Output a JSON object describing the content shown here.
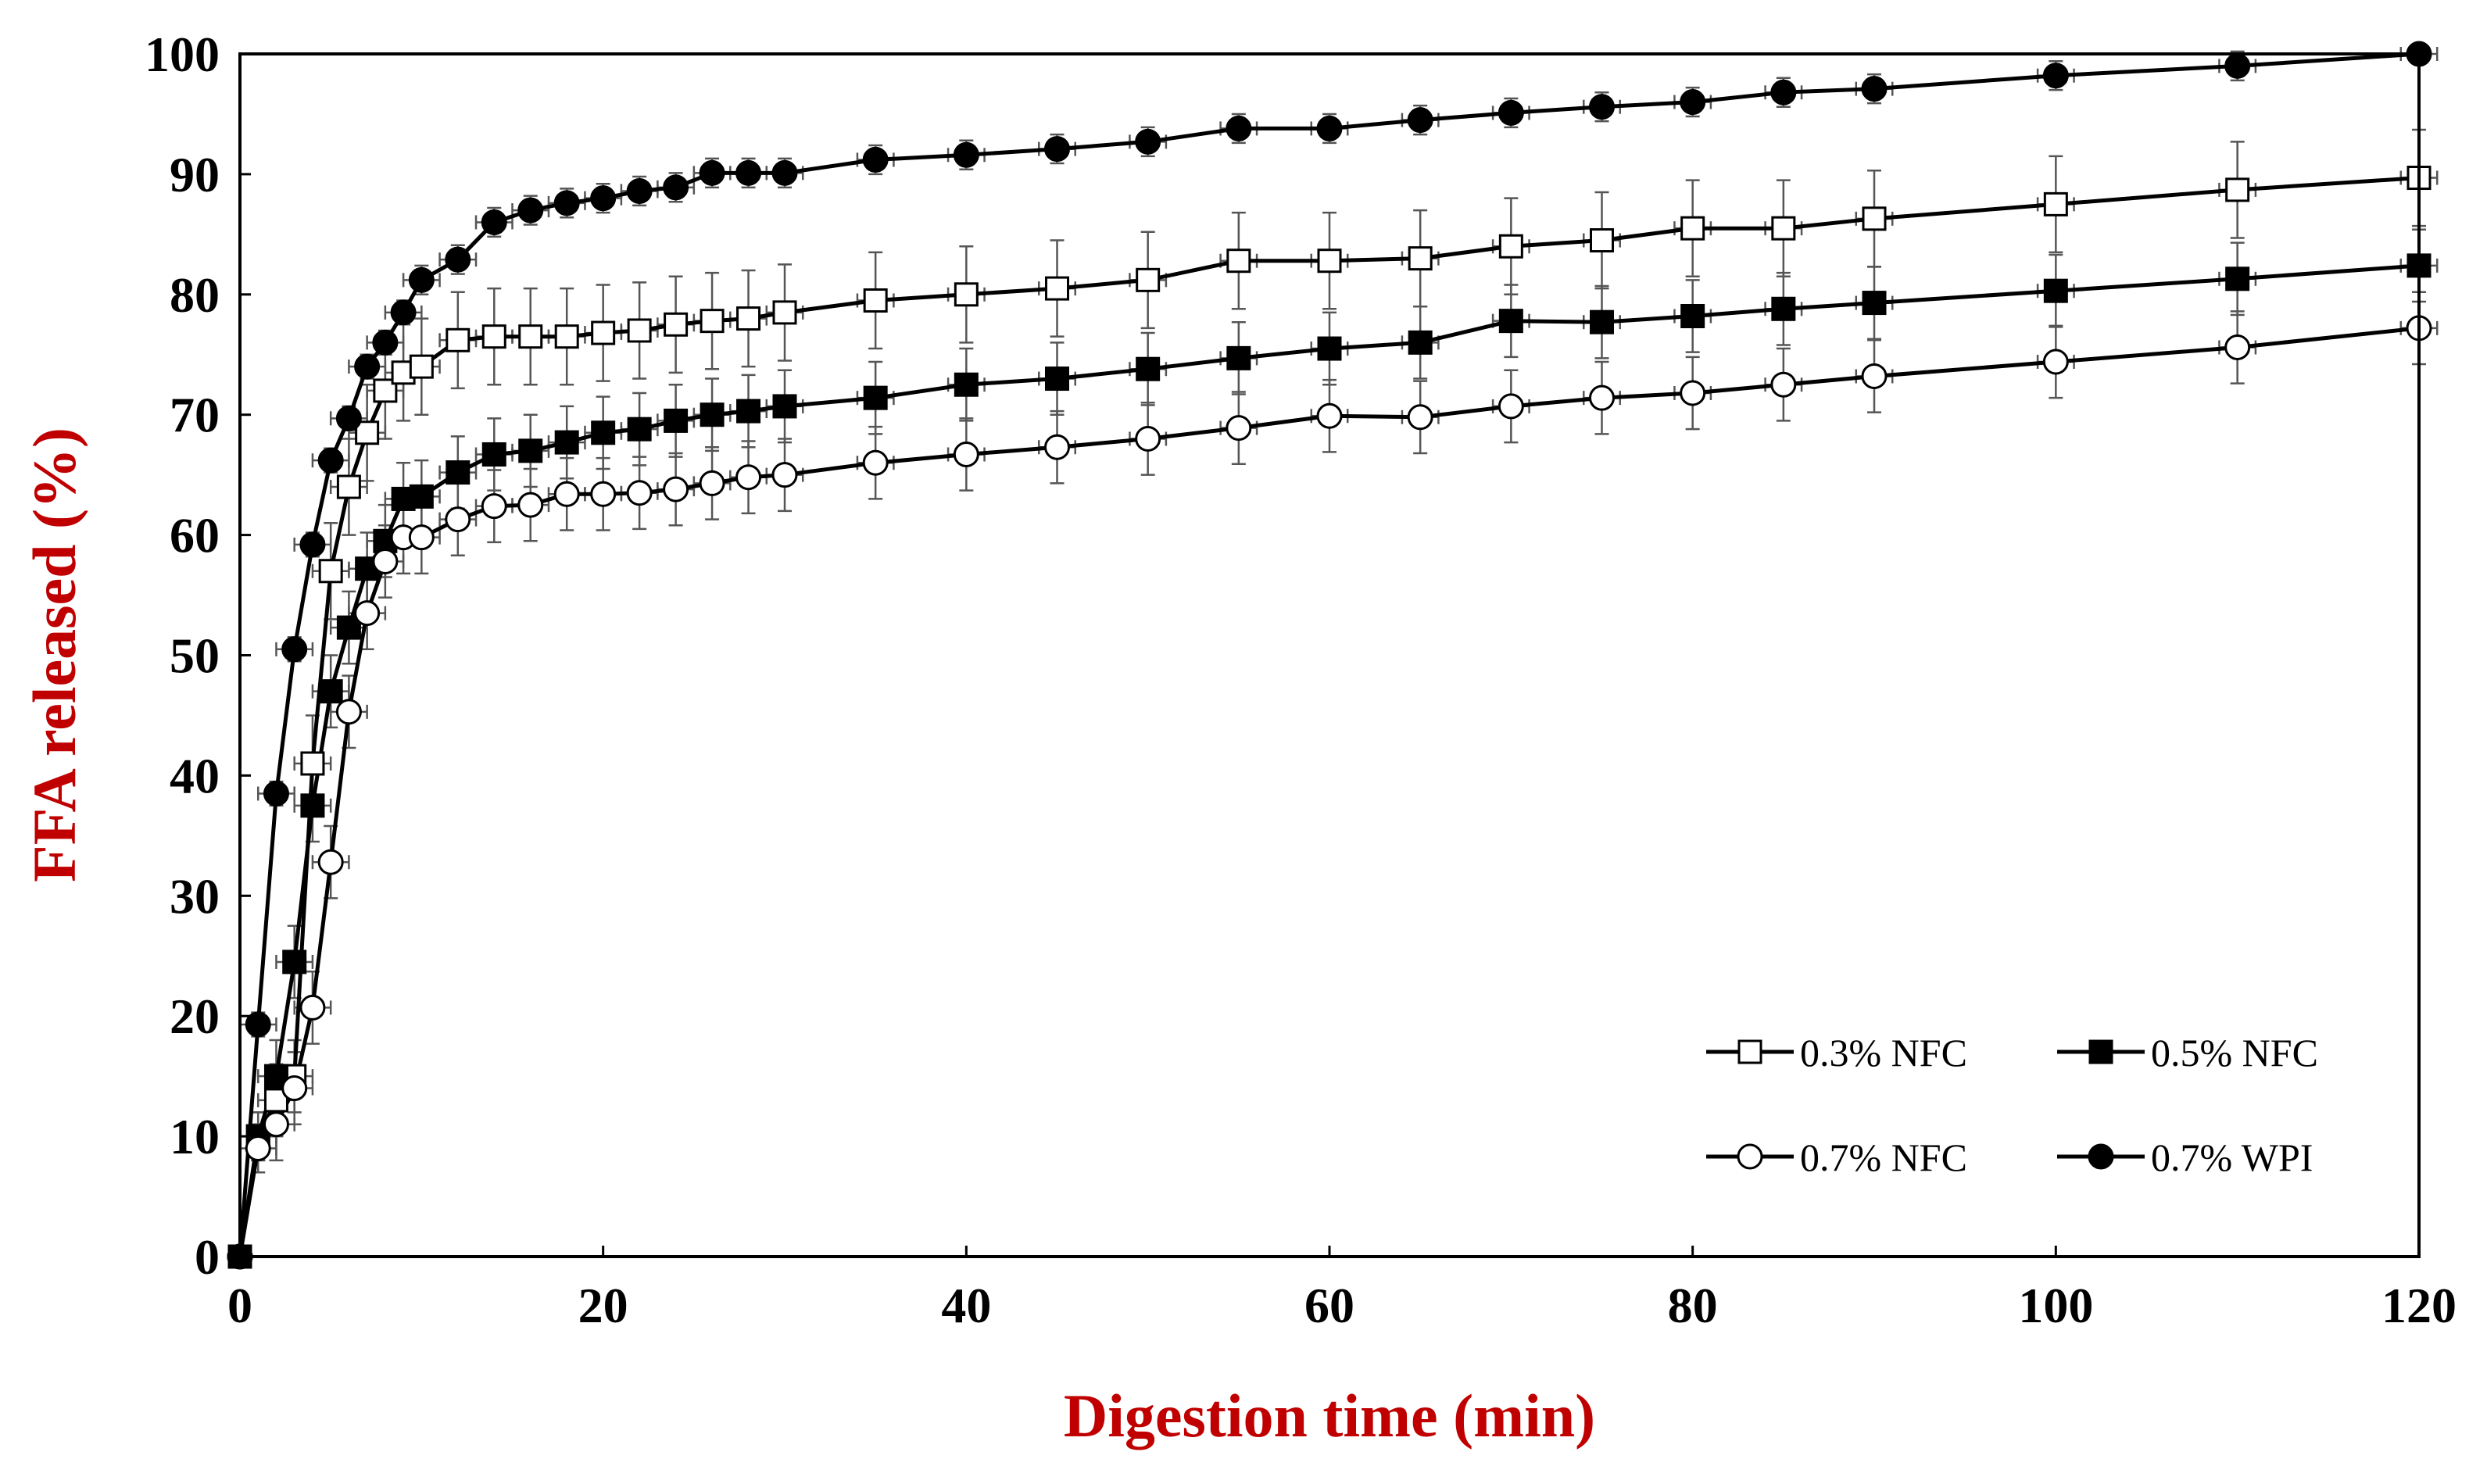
{
  "chart_data": {
    "type": "line",
    "title": "",
    "xlabel": "Digestion time (min)",
    "ylabel": "FFA released (%)",
    "xlim": [
      0,
      120
    ],
    "ylim": [
      0,
      100
    ],
    "xticks": [
      "0",
      "20",
      "40",
      "60",
      "80",
      "100",
      "120"
    ],
    "yticks": [
      "0",
      "10",
      "20",
      "30",
      "40",
      "50",
      "60",
      "70",
      "80",
      "90",
      "100"
    ],
    "legend_position": "bottom-right",
    "axis_title_color": "#c00000",
    "series": [
      {
        "name": "0.3% NFC",
        "marker": "square",
        "filled": false,
        "x": [
          0,
          1,
          2,
          3,
          4,
          5,
          6,
          7,
          8,
          9,
          10,
          12,
          14,
          16,
          18,
          20,
          22,
          24,
          26,
          28,
          30,
          35,
          40,
          45,
          50,
          55,
          60,
          65,
          70,
          75,
          80,
          85,
          90,
          100,
          110,
          120
        ],
        "y": [
          0,
          10,
          13,
          15,
          41,
          57,
          64,
          68.5,
          72,
          73.5,
          74,
          76.2,
          76.5,
          76.5,
          76.5,
          76.8,
          77,
          77.5,
          77.8,
          78,
          78.5,
          79.5,
          80,
          80.5,
          81.2,
          82.8,
          82.8,
          83,
          84,
          84.5,
          85.5,
          85.5,
          86.3,
          87.5,
          88.7,
          89.7
        ],
        "y_err": [
          0,
          2,
          3,
          3,
          4,
          4,
          4,
          4,
          4,
          4,
          4,
          4,
          4,
          4,
          4,
          4,
          4,
          4,
          4,
          4,
          4,
          4,
          4,
          4,
          4,
          4,
          4,
          4,
          4,
          4,
          4,
          4,
          4,
          4,
          4,
          4
        ],
        "x_err": [
          0,
          1,
          1,
          1,
          1,
          1,
          1,
          1,
          1,
          1,
          1,
          1,
          1,
          1,
          1,
          1,
          1,
          1,
          1,
          1,
          1,
          1,
          1,
          1,
          1,
          1,
          1,
          1,
          1,
          1,
          1,
          1,
          1,
          1,
          1,
          1
        ]
      },
      {
        "name": "0.5% NFC",
        "marker": "square",
        "filled": true,
        "x": [
          0,
          1,
          2,
          3,
          4,
          5,
          6,
          7,
          8,
          9,
          10,
          12,
          14,
          16,
          18,
          20,
          22,
          24,
          26,
          28,
          30,
          35,
          40,
          45,
          50,
          55,
          60,
          65,
          70,
          75,
          80,
          85,
          90,
          100,
          110,
          120
        ],
        "y": [
          0,
          10,
          15,
          24.5,
          37.5,
          47,
          52.3,
          57.2,
          59.5,
          63,
          63.2,
          65.2,
          66.7,
          67,
          67.7,
          68.5,
          68.8,
          69.5,
          70,
          70.3,
          70.7,
          71.4,
          72.5,
          73,
          73.8,
          74.7,
          75.5,
          76,
          77.8,
          77.7,
          78.2,
          78.8,
          79.3,
          80.3,
          81.3,
          82.4
        ],
        "y_err": [
          0,
          2,
          3,
          3,
          3,
          3,
          3,
          3,
          3,
          3,
          3,
          3,
          3,
          3,
          3,
          3,
          3,
          3,
          3,
          3,
          3,
          3,
          3,
          3,
          3,
          3,
          3,
          3,
          3,
          3,
          3,
          3,
          3,
          3,
          3,
          3
        ],
        "x_err": [
          0,
          1,
          1,
          1,
          1,
          1,
          1,
          1,
          1,
          1,
          1,
          1,
          1,
          1,
          1,
          1,
          1,
          1,
          1,
          1,
          1,
          1,
          1,
          1,
          1,
          1,
          1,
          1,
          1,
          1,
          1,
          1,
          1,
          1,
          1,
          1
        ]
      },
      {
        "name": "0.7% NFC",
        "marker": "circle",
        "filled": false,
        "x": [
          0,
          1,
          2,
          3,
          4,
          5,
          6,
          7,
          8,
          9,
          10,
          12,
          14,
          16,
          18,
          20,
          22,
          24,
          26,
          28,
          30,
          35,
          40,
          45,
          50,
          55,
          60,
          65,
          70,
          75,
          80,
          85,
          90,
          100,
          110,
          120
        ],
        "y": [
          0,
          9,
          11,
          14,
          20.7,
          32.8,
          45.3,
          53.5,
          57.8,
          59.8,
          59.8,
          61.3,
          62.4,
          62.5,
          63.4,
          63.4,
          63.5,
          63.8,
          64.3,
          64.8,
          65,
          66,
          66.7,
          67.3,
          68,
          68.9,
          69.9,
          69.8,
          70.7,
          71.4,
          71.8,
          72.5,
          73.2,
          74.4,
          75.6,
          77.2
        ],
        "y_err": [
          0,
          2,
          3,
          3,
          3,
          3,
          3,
          3,
          3,
          3,
          3,
          3,
          3,
          3,
          3,
          3,
          3,
          3,
          3,
          3,
          3,
          3,
          3,
          3,
          3,
          3,
          3,
          3,
          3,
          3,
          3,
          3,
          3,
          3,
          3,
          3
        ],
        "x_err": [
          0,
          1,
          1,
          1,
          1,
          1,
          1,
          1,
          1,
          1,
          1,
          1,
          1,
          1,
          1,
          1,
          1,
          1,
          1,
          1,
          1,
          1,
          1,
          1,
          1,
          1,
          1,
          1,
          1,
          1,
          1,
          1,
          1,
          1,
          1,
          1
        ]
      },
      {
        "name": "0.7% WPI",
        "marker": "circle",
        "filled": true,
        "x": [
          0,
          1,
          2,
          3,
          4,
          5,
          6,
          7,
          8,
          9,
          10,
          12,
          14,
          16,
          18,
          20,
          22,
          24,
          26,
          28,
          30,
          35,
          40,
          45,
          50,
          55,
          60,
          65,
          70,
          75,
          80,
          85,
          90,
          100,
          110,
          120
        ],
        "y": [
          0,
          19.3,
          38.5,
          50.5,
          59.2,
          66.2,
          69.7,
          74,
          76,
          78.5,
          81.2,
          82.9,
          86,
          87,
          87.6,
          88,
          88.6,
          88.9,
          90.1,
          90.1,
          90.1,
          91.2,
          91.6,
          92.1,
          92.7,
          93.8,
          93.8,
          94.5,
          95.1,
          95.6,
          96,
          96.8,
          97.1,
          98.2,
          99,
          100
        ],
        "y_err": [
          0,
          1,
          1,
          1,
          1,
          1,
          1,
          1,
          1,
          1,
          1.2,
          1.2,
          1.2,
          1.2,
          1.2,
          1.2,
          1.2,
          1.2,
          1.2,
          1.2,
          1.2,
          1.2,
          1.2,
          1.2,
          1.2,
          1.2,
          1.2,
          1.2,
          1.2,
          1.2,
          1.2,
          1.2,
          1.2,
          1.2,
          1.2,
          0
        ],
        "x_err": [
          0,
          1,
          1,
          1,
          1,
          1,
          1,
          1,
          1,
          1,
          1,
          1,
          1,
          1,
          1,
          1,
          1,
          1,
          1,
          1,
          1,
          1,
          1,
          1,
          1,
          1,
          1,
          1,
          1,
          1,
          1,
          1,
          1,
          1,
          1,
          1
        ]
      }
    ]
  }
}
